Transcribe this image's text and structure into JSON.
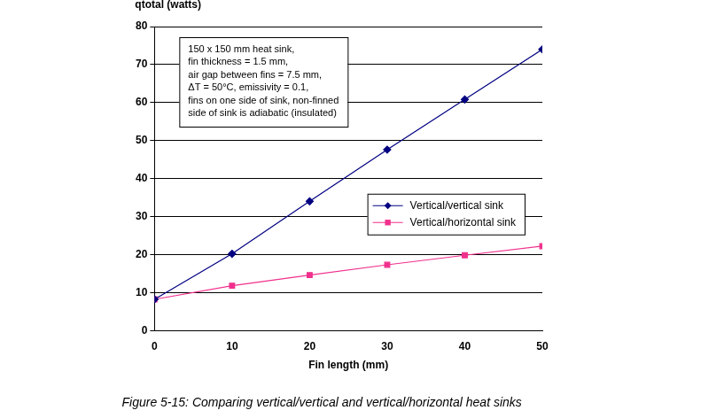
{
  "chart_data": {
    "type": "line",
    "title": "Figure 5-15: Comparing vertical/vertical and vertical/horizontal heat sinks",
    "x_label": "Fin length (mm)",
    "y_label": "qtotal (watts)",
    "annotation": [
      "150 x 150 mm heat sink,",
      "fin thickness = 1.5 mm,",
      "air gap between fins = 7.5 mm,",
      "ΔT = 50°C, emissivity = 0.1,",
      "fins on one side of sink, non-finned",
      "side of sink is adiabatic (insulated)"
    ],
    "x": [
      0,
      10,
      20,
      30,
      40,
      50
    ],
    "series": [
      {
        "name": "Vertical/vertical sink",
        "color": "#000080",
        "marker": "diamond",
        "values": [
          8.2,
          20.2,
          34,
          47.6,
          60.8,
          74
        ]
      },
      {
        "name": "Vertical/horizontal sink",
        "color": "#f0308c",
        "marker": "square",
        "values": [
          8.2,
          11.8,
          14.6,
          17.3,
          19.8,
          22.2
        ]
      }
    ],
    "xlim": [
      0,
      50
    ],
    "xticks": [
      0,
      10,
      20,
      30,
      40,
      50
    ],
    "ylim": [
      0,
      80
    ],
    "yticks": [
      0,
      10,
      20,
      30,
      40,
      50,
      60,
      70,
      80
    ],
    "grid": true,
    "legend": "right"
  }
}
